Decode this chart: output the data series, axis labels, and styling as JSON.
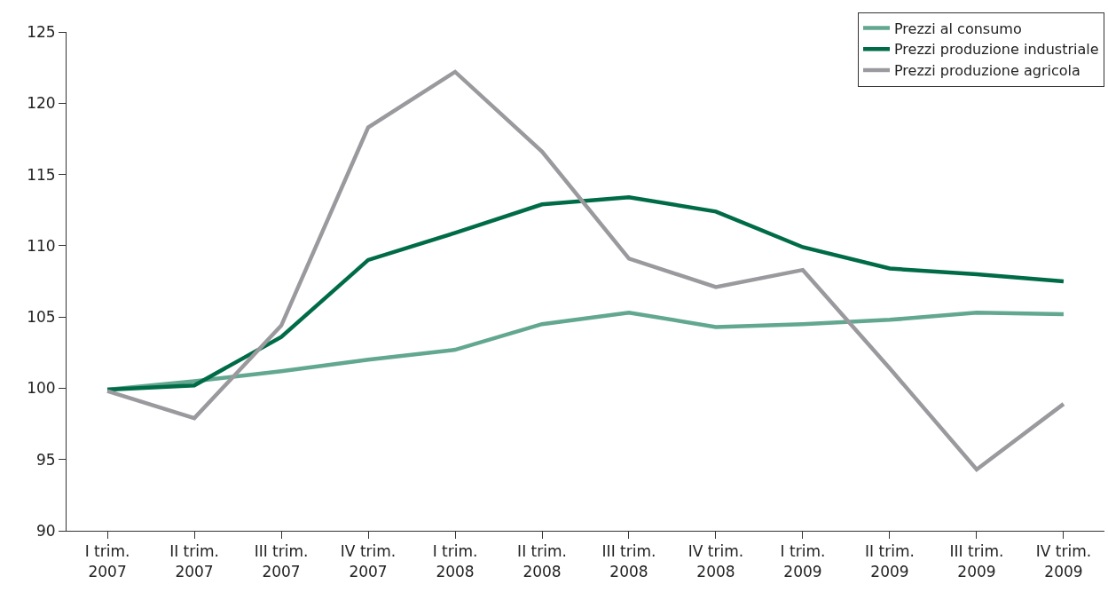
{
  "chart_data": {
    "type": "line",
    "categories": [
      "I trim.\n2007",
      "II trim.\n2007",
      "III trim.\n2007",
      "IV trim.\n2007",
      "I trim.\n2008",
      "II trim.\n2008",
      "III trim.\n2008",
      "IV trim.\n2008",
      "I trim.\n2009",
      "II trim.\n2009",
      "III trim.\n2009",
      "IV trim.\n2009"
    ],
    "series": [
      {
        "name": "Prezzi al consumo",
        "color": "#62a78f",
        "values": [
          99.9,
          100.5,
          101.2,
          102.0,
          102.7,
          104.5,
          105.3,
          104.3,
          104.5,
          104.8,
          105.3,
          105.2
        ]
      },
      {
        "name": "Prezzi produzione industriale",
        "color": "#006b47",
        "values": [
          99.9,
          100.2,
          103.6,
          109.0,
          110.9,
          112.9,
          113.4,
          112.4,
          109.9,
          108.4,
          108.0,
          107.5
        ]
      },
      {
        "name": "Prezzi produzione agricola",
        "color": "#9a9a9e",
        "values": [
          99.8,
          97.9,
          104.4,
          118.3,
          122.2,
          116.6,
          109.1,
          107.1,
          108.3,
          101.4,
          94.3,
          98.9
        ]
      }
    ],
    "ylim": [
      90,
      125
    ],
    "yticks": [
      90,
      95,
      100,
      105,
      110,
      115,
      120,
      125
    ],
    "grid": false,
    "legend": "top right",
    "marker": "none",
    "line_style": "solid"
  }
}
